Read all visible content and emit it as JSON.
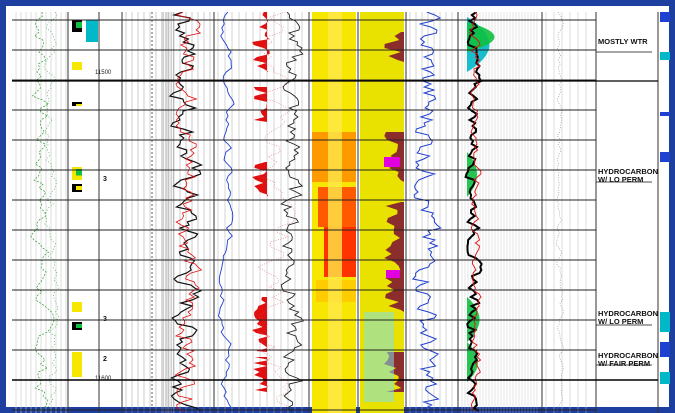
{
  "log": {
    "depth_labels": {
      "top": "11500",
      "bottom": "11600"
    },
    "zone_numbers": [
      "3",
      "3",
      "2"
    ],
    "annotations": [
      {
        "line1": "MOSTLY WTR",
        "line2": ""
      },
      {
        "line1": "HYDROCARBON",
        "line2": "W/ LO PERM"
      },
      {
        "line1": "HYDROCARBON",
        "line2": "W/ LO PERM"
      },
      {
        "line1": "HYDROCARBON",
        "line2": "W/ FAIR PERM"
      }
    ]
  },
  "colors": {
    "frame": "#1d3fa0",
    "gamma": "#2a9a2a",
    "resistivity": "#e01010",
    "porosity_fill": "#f7e600",
    "hydrocarbon": "#8b2d2d",
    "water": "#00b8c8",
    "neutron": "#2040d0",
    "permeability": "#10c040"
  }
}
